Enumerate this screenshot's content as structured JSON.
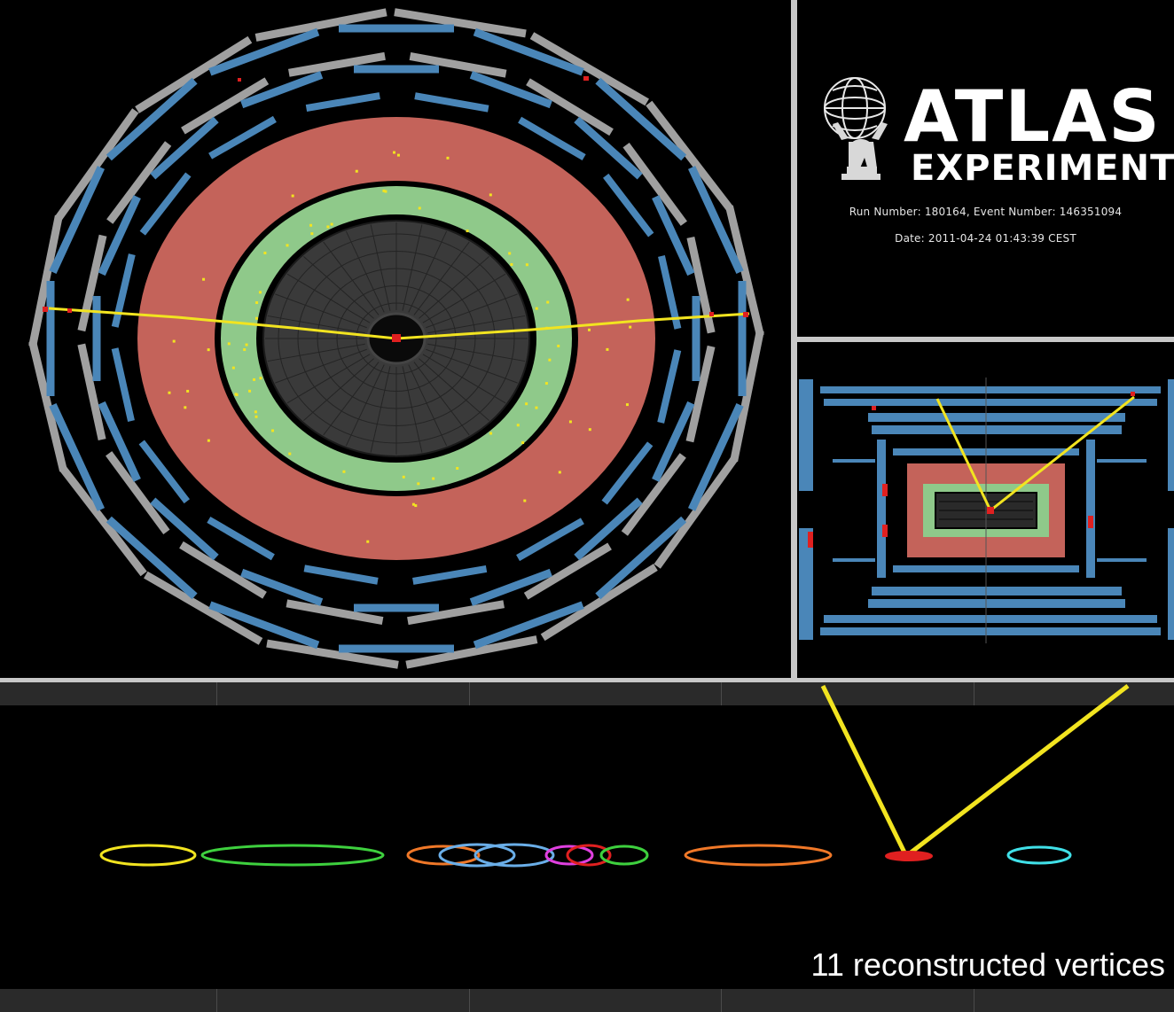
{
  "logo": {
    "title": "ATLAS",
    "subtitle": "EXPERIMENT",
    "figure_icon": "atlas-figure-icon"
  },
  "event": {
    "run_line": "Run Number: 180164, Event Number: 146351094",
    "date_line": "Date: 2011-04-24 01:43:39 CEST"
  },
  "vertex_view": {
    "caption": "11 reconstructed vertices"
  },
  "colors": {
    "calorimeter_hadronic": "#c4635a",
    "calorimeter_em": "#8fc98a",
    "muon_chamber_blue": "#4a86b8",
    "muon_chamber_grey": "#a0a0a0",
    "track": "#f2e420",
    "energy_deposit": "#e02020",
    "inner_detector": "#3a3a3a"
  }
}
